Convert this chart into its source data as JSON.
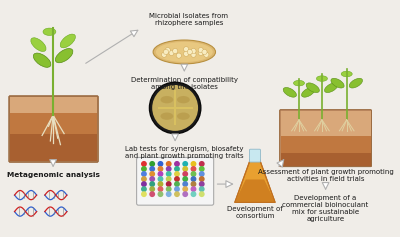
{
  "bg_color": "#f0ede8",
  "text_color": "#1a1a1a",
  "labels": {
    "microbial": "Microbial Isolates from\nrhizophere samples",
    "compatibility": "Determination of compatibility\namong the isolates",
    "lab_tests": "Lab tests for synergism, biosafety\nand plant growth promoting traits",
    "metagenomic": "Metagenomic analysis",
    "consortium": "Development of\nconsortium",
    "assessment": "Assessment of plant growth promoting\nactivities in field trials",
    "bioinoculant": "Development of a\ncommercial bioinoculant\nmix for sustainable\nagriculture"
  },
  "font_size": 5.0,
  "arrow_color": "#b0b0b0"
}
